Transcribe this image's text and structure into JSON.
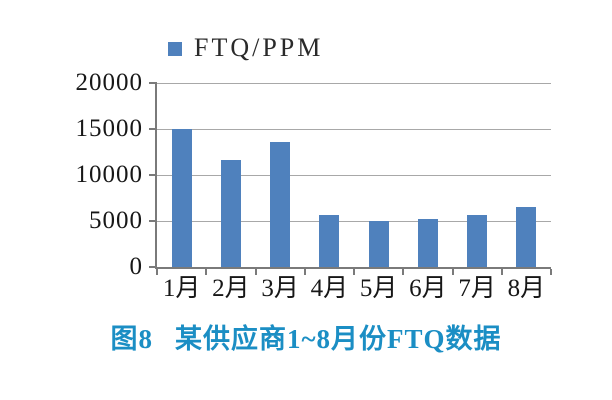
{
  "figure": {
    "legend": {
      "label": "FTQ/PPM"
    },
    "caption": {
      "prefix": "图8",
      "title": "某供应商1~8月份FTQ数据",
      "color": "#1b8ec4"
    }
  },
  "chart_data": {
    "type": "bar",
    "title": "图8 某供应商1~8月份FTQ数据",
    "legend_entries": [
      "FTQ/PPM"
    ],
    "legend_position": "top",
    "categories": [
      "1月",
      "2月",
      "3月",
      "4月",
      "5月",
      "6月",
      "7月",
      "8月"
    ],
    "values": [
      15000,
      11600,
      13600,
      5700,
      5000,
      5200,
      5600,
      6500
    ],
    "xlabel": "",
    "ylabel": "",
    "ylim": [
      0,
      20000
    ],
    "yticks": [
      0,
      5000,
      10000,
      15000,
      20000
    ],
    "grid": true,
    "bar_color": "#4f81bd",
    "axis_color": "#7a7a7a",
    "gridline_color": "#a8a8a8"
  }
}
